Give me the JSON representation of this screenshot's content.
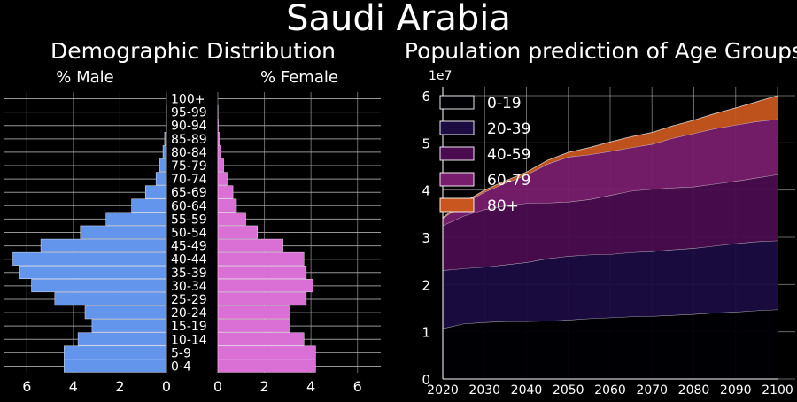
{
  "figure_title": "Saudi Arabia",
  "colors": {
    "background": "#000000",
    "male": "#6495ED",
    "female": "#DA70D6",
    "grid": "#b0b0b0",
    "area": [
      "#000004",
      "#1b0c41",
      "#4a0c4e",
      "#781c6d",
      "#a52c60"
    ],
    "area_top": "#c8561e"
  },
  "chart_data": [
    {
      "type": "bar",
      "orientation": "horizontal",
      "title": "Demographic Distribution",
      "left_label": "% Male",
      "right_label": "% Female",
      "categories": [
        "0-4",
        "5-9",
        "10-14",
        "15-19",
        "20-24",
        "25-29",
        "30-34",
        "35-39",
        "40-44",
        "45-49",
        "50-54",
        "55-59",
        "60-64",
        "65-69",
        "70-74",
        "75-79",
        "80-84",
        "85-89",
        "90-94",
        "95-99",
        "100+"
      ],
      "series": [
        {
          "name": "% Male",
          "values": [
            4.4,
            4.4,
            3.8,
            3.2,
            3.5,
            4.8,
            5.8,
            6.3,
            6.6,
            5.4,
            3.7,
            2.6,
            1.5,
            0.9,
            0.45,
            0.3,
            0.15,
            0.08,
            0.03,
            0.01,
            0.0
          ]
        },
        {
          "name": "% Female",
          "values": [
            4.2,
            4.2,
            3.7,
            3.1,
            3.1,
            3.8,
            4.1,
            3.8,
            3.7,
            2.8,
            1.7,
            1.2,
            0.8,
            0.65,
            0.4,
            0.25,
            0.12,
            0.06,
            0.02,
            0.01,
            0.0
          ]
        }
      ],
      "xlim": [
        0,
        7
      ],
      "xticks": [
        "6",
        "4",
        "2",
        "0",
        "0",
        "2",
        "4",
        "6"
      ],
      "grid": true
    },
    {
      "type": "area",
      "stacked": true,
      "title": "Population prediction of Age Groups",
      "scale_label": "1e7",
      "x": [
        2020,
        2025,
        2030,
        2035,
        2040,
        2045,
        2050,
        2055,
        2060,
        2065,
        2070,
        2075,
        2080,
        2085,
        2090,
        2095,
        2100
      ],
      "x_ticks": [
        "2020",
        "2030",
        "2040",
        "2050",
        "2060",
        "2070",
        "2080",
        "2090",
        "2100"
      ],
      "y_ticks": [
        "0",
        "1",
        "2",
        "3",
        "4",
        "5",
        "6"
      ],
      "ylim": [
        0,
        6
      ],
      "legend_position": "top-left",
      "series": [
        {
          "name": "0-19",
          "values": [
            1.07,
            1.17,
            1.2,
            1.22,
            1.22,
            1.23,
            1.25,
            1.28,
            1.3,
            1.32,
            1.33,
            1.35,
            1.37,
            1.4,
            1.42,
            1.45,
            1.47
          ]
        },
        {
          "name": "20-39",
          "values": [
            1.23,
            1.17,
            1.17,
            1.2,
            1.25,
            1.32,
            1.35,
            1.35,
            1.34,
            1.36,
            1.37,
            1.39,
            1.4,
            1.42,
            1.45,
            1.46,
            1.46
          ]
        },
        {
          "name": "40-59",
          "values": [
            0.95,
            1.11,
            1.22,
            1.25,
            1.25,
            1.18,
            1.15,
            1.17,
            1.25,
            1.3,
            1.32,
            1.31,
            1.3,
            1.31,
            1.32,
            1.35,
            1.4
          ]
        },
        {
          "name": "60-79",
          "values": [
            0.15,
            0.26,
            0.37,
            0.48,
            0.6,
            0.82,
            0.95,
            0.95,
            0.93,
            0.92,
            0.95,
            1.05,
            1.13,
            1.17,
            1.19,
            1.19,
            1.17
          ]
        },
        {
          "name": "80+",
          "values": [
            0.02,
            0.03,
            0.04,
            0.05,
            0.06,
            0.08,
            0.1,
            0.15,
            0.2,
            0.23,
            0.25,
            0.26,
            0.28,
            0.32,
            0.36,
            0.42,
            0.5
          ]
        }
      ]
    }
  ]
}
